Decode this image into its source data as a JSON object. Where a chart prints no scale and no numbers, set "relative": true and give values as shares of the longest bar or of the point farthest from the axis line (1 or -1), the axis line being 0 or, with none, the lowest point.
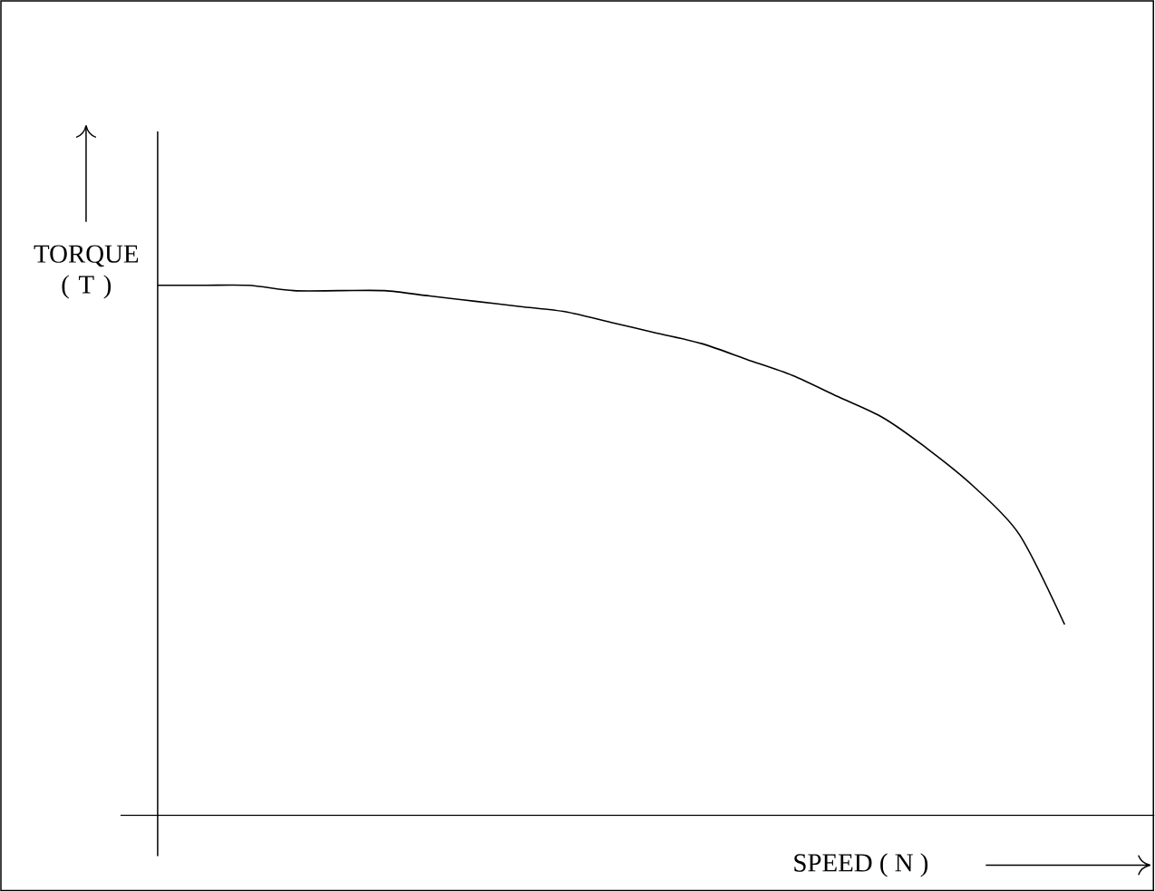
{
  "chart_data": {
    "type": "line",
    "relative": true,
    "xlabel": "SPEED ( N )",
    "ylabel": "TORQUE ( T )",
    "color": "#000000",
    "categories": [
      null,
      null,
      null,
      null,
      null,
      null,
      null,
      null,
      null,
      null,
      null,
      null,
      null,
      null,
      null,
      null,
      null,
      null,
      null,
      null,
      null
    ],
    "values": [
      1.0,
      1.0,
      1.0,
      0.99,
      0.99,
      0.99,
      0.98,
      0.97,
      0.96,
      0.95,
      0.93,
      0.91,
      0.89,
      0.86,
      0.83,
      0.79,
      0.75,
      0.69,
      0.62,
      0.53,
      0.36
    ]
  }
}
